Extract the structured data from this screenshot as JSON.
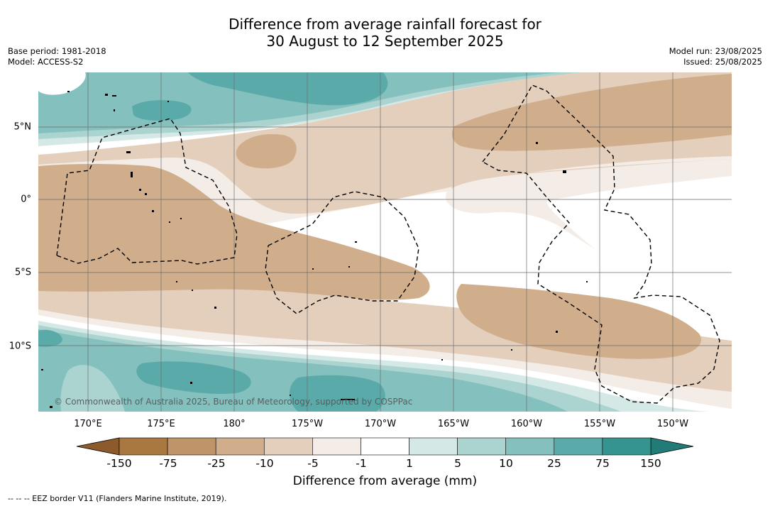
{
  "title": {
    "line1": "Difference from average rainfall forecast for",
    "line2": "30 August to 12 September 2025"
  },
  "meta": {
    "base_period": "Base period: 1981-2018",
    "model": "Model: ACCESS-S2",
    "model_run": "Model run: 23/08/2025",
    "issued": "Issued: 25/08/2025"
  },
  "map": {
    "longitude_labels": [
      "170°E",
      "175°E",
      "180°",
      "175°W",
      "170°W",
      "165°W",
      "160°W",
      "155°W",
      "150°W"
    ],
    "latitude_labels": [
      "5°N",
      "0°",
      "5°S",
      "10°S"
    ],
    "credit": "© Commonwealth of Australia 2025, Bureau of Meteorology, supported by COSPPac"
  },
  "colorbar": {
    "ticks": [
      "-150",
      "-75",
      "-25",
      "-10",
      "-5",
      "-1",
      "1",
      "5",
      "10",
      "25",
      "75",
      "150"
    ],
    "colors": [
      "#A87840",
      "#BF9468",
      "#D0AE8C",
      "#E3CFBC",
      "#F4ECE6",
      "#FFFFFF",
      "#D4E8E6",
      "#ABD3D0",
      "#84C0BD",
      "#5BAAAA",
      "#359490"
    ],
    "under_color": "#8C5A2B",
    "over_color": "#217C78",
    "title": "Difference from average (mm)"
  },
  "footnote": "--  --  -- EEZ border V11 (Flanders Marine Institute, 2019)."
}
